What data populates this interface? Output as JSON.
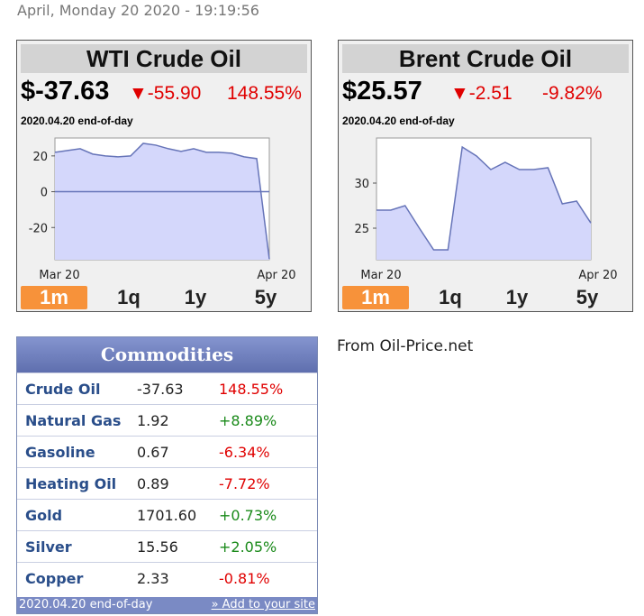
{
  "datetime": "April, Monday 20 2020 - 19:19:56",
  "wti": {
    "title": "WTI Crude Oil",
    "price": "$-37.63",
    "arrow": "▼",
    "change": "-55.90",
    "pct": "148.55%",
    "date": "2020.04.20 end-of-day",
    "tabs": [
      "1m",
      "1q",
      "1y",
      "5y"
    ],
    "active_tab": "1m"
  },
  "brent": {
    "title": "Brent Crude Oil",
    "price": "$25.57",
    "arrow": "▼",
    "change": "-2.51",
    "pct": "-9.82%",
    "date": "2020.04.20 end-of-day",
    "tabs": [
      "1m",
      "1q",
      "1y",
      "5y"
    ],
    "active_tab": "1m"
  },
  "chart_data": [
    {
      "type": "area",
      "x_labels": [
        "Mar 20",
        "Apr 20"
      ],
      "y_ticks": [
        20,
        0,
        -20
      ],
      "ylim": [
        -38,
        30
      ],
      "values": [
        22,
        23,
        24,
        21,
        20,
        19.5,
        20,
        27,
        26,
        24,
        22.5,
        24,
        22,
        22,
        21.5,
        19.5,
        18.5,
        -37.63
      ],
      "fill_color": "#d4d7fb",
      "line_color": "#6674b8"
    },
    {
      "type": "area",
      "x_labels": [
        "Mar 20",
        "Apr 20"
      ],
      "y_ticks": [
        30,
        25
      ],
      "ylim": [
        21.5,
        35
      ],
      "values": [
        27,
        27,
        27.5,
        25,
        22.6,
        22.6,
        34,
        33,
        31.5,
        32.3,
        31.5,
        31.5,
        31.7,
        27.7,
        28,
        25.57
      ],
      "fill_color": "#d4d7fb",
      "line_color": "#6674b8"
    }
  ],
  "commodities": {
    "title": "Commodities",
    "rows": [
      {
        "name": "Crude Oil",
        "value": "-37.63",
        "change": "148.55%",
        "dir": "neg"
      },
      {
        "name": "Natural Gas",
        "value": "1.92",
        "change": "+8.89%",
        "dir": "pos"
      },
      {
        "name": "Gasoline",
        "value": "0.67",
        "change": "-6.34%",
        "dir": "neg"
      },
      {
        "name": "Heating Oil",
        "value": "0.89",
        "change": "-7.72%",
        "dir": "neg"
      },
      {
        "name": "Gold",
        "value": "1701.60",
        "change": "+0.73%",
        "dir": "pos"
      },
      {
        "name": "Silver",
        "value": "15.56",
        "change": "+2.05%",
        "dir": "pos"
      },
      {
        "name": "Copper",
        "value": "2.33",
        "change": "-0.81%",
        "dir": "neg"
      }
    ],
    "footer_date": "2020.04.20 end-of-day",
    "footer_link": "» Add to your site"
  },
  "source": "From Oil-Price.net"
}
